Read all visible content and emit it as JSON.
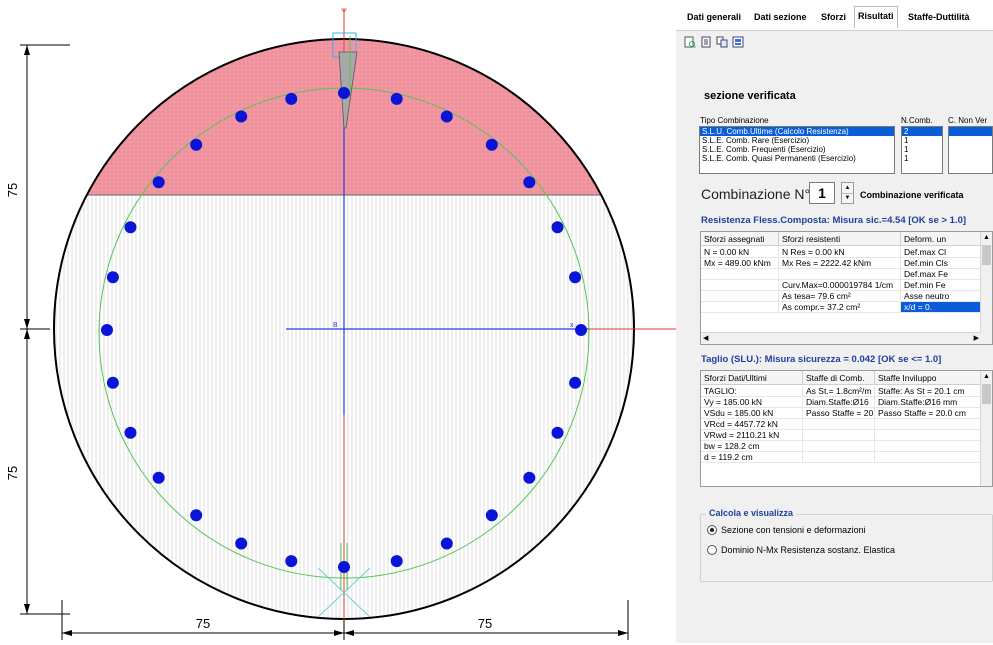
{
  "drawing": {
    "dimensions": {
      "left_top": "75",
      "left_bottom": "75",
      "bottom_left": "75",
      "bottom_right": "75"
    },
    "axis_labels": {
      "y": "Y",
      "x": "X",
      "origin": "B",
      "x_end": "x"
    },
    "colors": {
      "compressed_zone": "#f29aa6",
      "bars": "#0a14d6",
      "stirrup": "#55c455",
      "axis_y": "#e23a3a",
      "axis_local": "#2a3ae0"
    }
  },
  "panel": {
    "tabs": [
      {
        "label": "Dati generali",
        "active": false
      },
      {
        "label": "Dati sezione",
        "active": false
      },
      {
        "label": "Sforzi",
        "active": false
      },
      {
        "label": "Risultati",
        "active": true
      },
      {
        "label": "Staffe-Duttilità",
        "active": false
      }
    ],
    "toolbar_icons": [
      "preview-icon",
      "document-icon",
      "copy-icon",
      "export-icon"
    ],
    "status": "sezione verificata",
    "combo_headers": {
      "type": "Tipo  Combinazione",
      "ncomb": "N.Comb.",
      "cnonver": "C. Non Ver"
    },
    "combo_types": [
      "S.L.U. Comb.Ultime (Calcolo Resistenza)",
      "S.L.E. Comb. Rare (Esercizio)",
      "S.L.E. Comb. Frequenti (Esercizio)",
      "S.L.E. Comb. Quasi Permanenti (Esercizio)"
    ],
    "combo_counts": [
      "2",
      "1",
      "1",
      "1"
    ],
    "combination_label": "Combinazione N°",
    "combination_value": "1",
    "combination_status": "Combinazione verificata",
    "resistance_title": "Resistenza Fless.Composta: Misura sic.=4.54 [OK se > 1.0]",
    "resistance_headers": [
      "Sforzi assegnati",
      "Sforzi resistenti",
      "Deform. un"
    ],
    "resistance_rows": [
      [
        "N  = 0.00 kN",
        "N Res  = 0.00 kN",
        "Def.max Cl"
      ],
      [
        "Mx  = 489.00 kNm",
        "Mx Res = 2222.42 kNm",
        "Def.min Cls"
      ],
      [
        "",
        "",
        "Def.max Fe"
      ],
      [
        "",
        "Curv.Max=0.000019784 1/cm",
        "Def.min Fe"
      ],
      [
        "",
        "As tesa= 79.6 cm²",
        "Asse neutro"
      ],
      [
        "",
        "As compr.= 37.2 cm²",
        "x/d  =   0."
      ]
    ],
    "shear_title": "Taglio (SLU.): Misura sicurezza = 0.042 [OK se <= 1.0]",
    "shear_headers": [
      "Sforzi Dati/Ultimi",
      "Staffe di Comb.",
      "Staffe Inviluppo"
    ],
    "shear_rows": [
      [
        "TAGLIO:",
        "As St.= 1.8cm²/m",
        "Staffe:  As St = 20.1 cm"
      ],
      [
        "Vy  = 185.00 kN",
        "Diam.Staffe:Ø16",
        "Diam.Staffe:Ø16 mm"
      ],
      [
        "VSdu  = 185.00 kN",
        "Passo Staffe = 20",
        "Passo Staffe = 20.0 cm"
      ],
      [
        "VRcd   = 4457.72 kN",
        "",
        ""
      ],
      [
        "VRwd = 2110.21 kN",
        "",
        ""
      ],
      [
        "bw    = 128.2  cm",
        "",
        ""
      ],
      [
        "d     = 119.2  cm",
        "",
        ""
      ]
    ],
    "group_title": "Calcola e visualizza",
    "radio_options": [
      {
        "label": "Sezione con tensioni e deformazioni",
        "checked": true
      },
      {
        "label": "Dominio N-Mx Resistenza sostanz. Elastica",
        "checked": false
      }
    ]
  }
}
